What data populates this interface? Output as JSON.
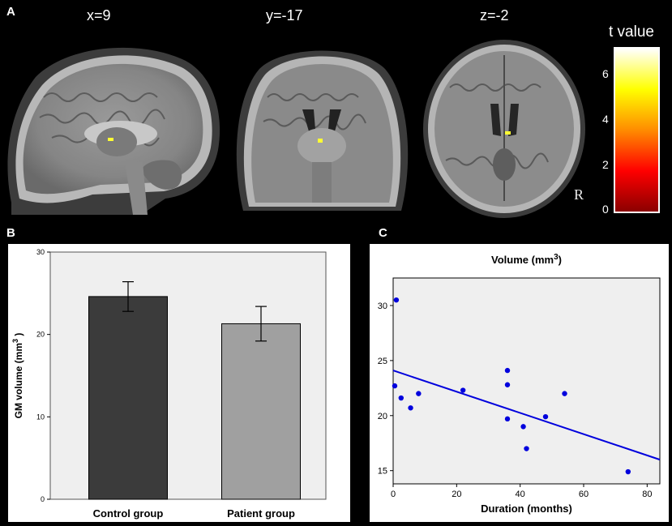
{
  "panel_a": {
    "letter": "A",
    "slices": [
      {
        "label": "x=9",
        "view": "sagittal"
      },
      {
        "label": "y=-17",
        "view": "coronal"
      },
      {
        "label": "z=-2",
        "view": "axial"
      }
    ],
    "orientation_label": "R",
    "colorbar": {
      "title": "t value",
      "ticks": [
        "0",
        "2",
        "4",
        "6"
      ],
      "colors": [
        "#8b0000",
        "#ff0000",
        "#ff8c00",
        "#ffff00",
        "#ffffff"
      ]
    },
    "highlight_color": "#ffff33"
  },
  "panel_b": {
    "letter": "B",
    "chart_data": {
      "type": "bar",
      "categories": [
        "Control group",
        "Patient group"
      ],
      "values": [
        24.6,
        21.3
      ],
      "error_low": [
        22.8,
        19.2
      ],
      "error_high": [
        26.4,
        23.4
      ],
      "ylabel": "GM volume (mm",
      "ylabel_sup": "3",
      "ylabel_end": " )",
      "ylim": [
        0,
        30
      ],
      "yticks": [
        "0",
        "10",
        "20",
        "30"
      ],
      "bar_colors": [
        "#3b3b3b",
        "#a0a0a0"
      ],
      "background": "#efefef"
    }
  },
  "panel_c": {
    "letter": "C",
    "chart_data": {
      "type": "scatter",
      "title": "Volume (mm",
      "title_sup": "3",
      "title_end": ")",
      "xlabel": "Duration (months)",
      "xlim": [
        0,
        84
      ],
      "ylim": [
        13.8,
        32.5
      ],
      "xticks": [
        "0",
        "20",
        "40",
        "60",
        "80"
      ],
      "yticks": [
        "15",
        "20",
        "25",
        "30"
      ],
      "points": [
        [
          1,
          30.5
        ],
        [
          0.5,
          22.7
        ],
        [
          2.5,
          21.6
        ],
        [
          5.5,
          20.7
        ],
        [
          8,
          22
        ],
        [
          22,
          22.3
        ],
        [
          36,
          24.1
        ],
        [
          36,
          22.8
        ],
        [
          36,
          19.7
        ],
        [
          41,
          19
        ],
        [
          42,
          17
        ],
        [
          48,
          19.9
        ],
        [
          54,
          22
        ],
        [
          74,
          14.9
        ]
      ],
      "fit_line": [
        [
          0,
          24.1
        ],
        [
          84,
          16
        ]
      ],
      "point_color": "#0000dd",
      "line_color": "#0000dd",
      "background": "#efefef"
    }
  }
}
